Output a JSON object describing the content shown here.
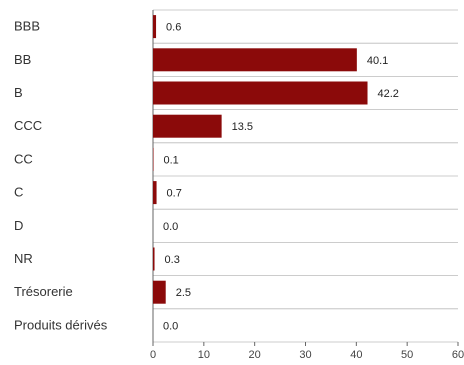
{
  "chart_data": {
    "type": "bar",
    "orientation": "horizontal",
    "categories": [
      "BBB",
      "BB",
      "B",
      "CCC",
      "CC",
      "C",
      "D",
      "NR",
      "Trésorerie",
      "Produits dérivés"
    ],
    "values": [
      0.6,
      40.1,
      42.2,
      13.5,
      0.1,
      0.7,
      0.0,
      0.3,
      2.5,
      0.0
    ],
    "value_labels": [
      "0.6",
      "40.1",
      "42.2",
      "13.5",
      "0.1",
      "0.7",
      "0.0",
      "0.3",
      "2.5",
      "0.0"
    ],
    "xlim": [
      0,
      60
    ],
    "xticks": [
      0,
      10,
      20,
      30,
      40,
      50,
      60
    ],
    "grid": "horizontal separators",
    "colors": {
      "bar": "#8b0a0a",
      "grid": "#bbbbbb",
      "axis": "#666666"
    }
  }
}
